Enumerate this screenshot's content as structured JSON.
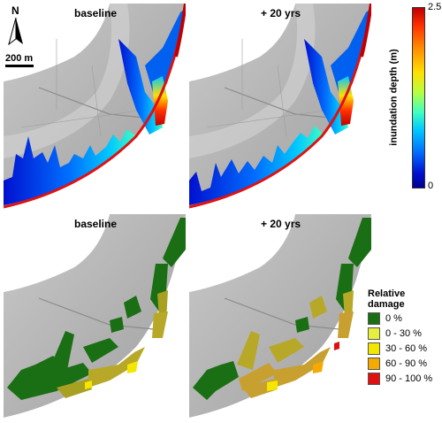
{
  "panels": {
    "top_left_title": "baseline",
    "top_right_title": "+ 20 yrs",
    "bottom_left_title": "baseline",
    "bottom_right_title": "+ 20 yrs"
  },
  "north_arrow": {
    "label": "N",
    "icon": "north-arrow-icon"
  },
  "scale_bar": {
    "label": "200 m"
  },
  "colorbar": {
    "title": "inundation depth (m)",
    "max_label": "2.5",
    "min_label": "0",
    "colors": [
      "#c00000",
      "#ff8a00",
      "#ffe000",
      "#40ffc0",
      "#00c8ff",
      "#0070ff",
      "#000090"
    ]
  },
  "damage_legend": {
    "title_line1": "Relative",
    "title_line2": "damage",
    "items": [
      {
        "label": "0 %",
        "color": "#1a6e14"
      },
      {
        "label": "0 - 30 %",
        "color": "#e6f03c"
      },
      {
        "label": "30 - 60 %",
        "color": "#f5e600"
      },
      {
        "label": "60 - 90 %",
        "color": "#f5aa00"
      },
      {
        "label": "90 - 100 %",
        "color": "#e01010"
      }
    ]
  }
}
